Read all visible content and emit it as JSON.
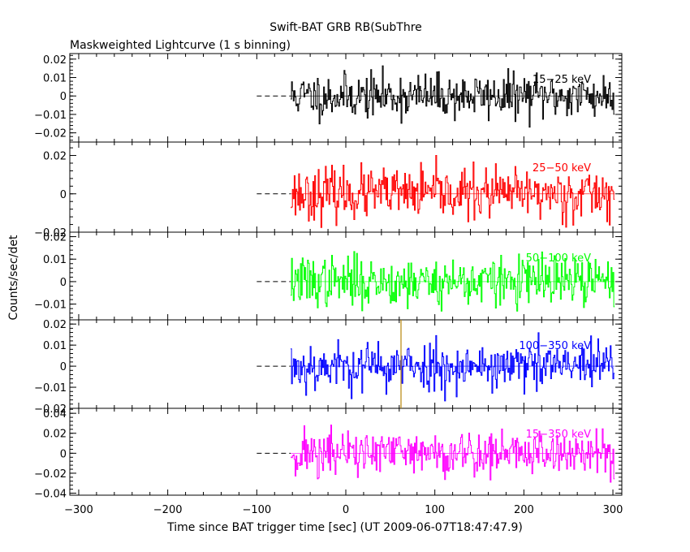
{
  "title": "Swift-BAT GRB RB(SubThre",
  "subtitle": "Maskweighted Lightcurve (1 s binning)",
  "ylabel": "Counts/sec/det",
  "xlabel": "Time since BAT trigger time [sec] (UT 2009-06-07T18:47:47.9)",
  "chart_data": {
    "type": "line",
    "x_range": [
      -310,
      310
    ],
    "x_ticks": [
      -300,
      -200,
      -100,
      0,
      100,
      200,
      300
    ],
    "data_start": -62,
    "data_end": 302,
    "background_dashes": [
      -100,
      -62
    ],
    "marker_line": {
      "x": 62,
      "panel": 4,
      "color": "#b8860b"
    },
    "panels": [
      {
        "label": "15−25 keV",
        "color": "#000000",
        "ylim": [
          -0.025,
          0.023
        ],
        "yticks": [
          -0.02,
          -0.01,
          0,
          0.01,
          0.02
        ],
        "tick_labels": [
          "−0.02",
          "−0.01",
          "0",
          "0.01",
          "0.02"
        ],
        "amplitude": 0.006,
        "seed": 11
      },
      {
        "label": "25−50 keV",
        "color": "#ff0000",
        "ylim": [
          -0.02,
          0.027
        ],
        "yticks": [
          -0.02,
          0,
          0.02
        ],
        "tick_labels": [
          "−0.02",
          "0",
          "0.02"
        ],
        "amplitude": 0.0065,
        "seed": 23
      },
      {
        "label": "50−100 keV",
        "color": "#00ff00",
        "ylim": [
          -0.017,
          0.022
        ],
        "yticks": [
          -0.01,
          0,
          0.01,
          0.02
        ],
        "tick_labels": [
          "−0.01",
          "0",
          "0.01",
          "0.02"
        ],
        "amplitude": 0.0055,
        "seed": 37
      },
      {
        "label": "100−350 keV",
        "color": "#0000ff",
        "ylim": [
          -0.02,
          0.022
        ],
        "yticks": [
          -0.02,
          -0.01,
          0,
          0.01,
          0.02
        ],
        "tick_labels": [
          "−0.02",
          "−0.01",
          "0",
          "0.01",
          "0.02"
        ],
        "amplitude": 0.0058,
        "seed": 53
      },
      {
        "label": "15−350 keV",
        "color": "#ff00ff",
        "ylim": [
          -0.042,
          0.045
        ],
        "yticks": [
          -0.04,
          -0.02,
          0,
          0.02,
          0.04
        ],
        "tick_labels": [
          "−0.04",
          "−0.02",
          "0",
          "0.02",
          "0.04"
        ],
        "amplitude": 0.012,
        "seed": 71
      }
    ]
  }
}
